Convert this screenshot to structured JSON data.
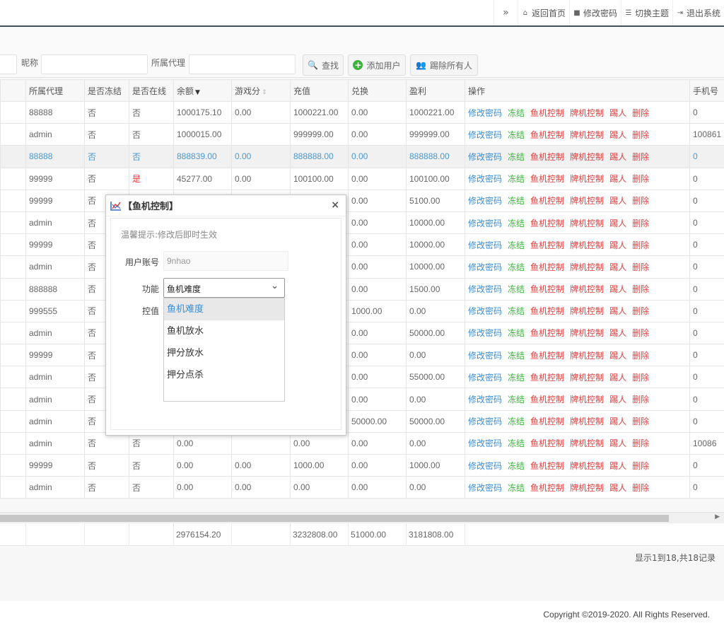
{
  "topnav": {
    "expand": "»",
    "home": "返回首页",
    "password": "修改密码",
    "theme": "切换主题",
    "logout": "退出系统"
  },
  "toolbar": {
    "nickname_label": "昵称",
    "agent_label": "所属代理",
    "search_btn": "查找",
    "add_btn": "添加用户",
    "kick_all_btn": "踢除所有人"
  },
  "table": {
    "headers": [
      "所属代理",
      "是否冻结",
      "是否在线",
      "余额",
      "游戏分",
      "充值",
      "兑换",
      "盈利",
      "操作",
      "手机号"
    ],
    "ops": [
      "修改密码",
      "冻结",
      "鱼机控制",
      "牌机控制",
      "踢人",
      "删除"
    ],
    "rows": [
      [
        "88888",
        "否",
        "否",
        "1000175.10",
        "0.00",
        "1000221.00",
        "0.00",
        "1000221.00",
        "0"
      ],
      [
        "admin",
        "否",
        "否",
        "1000015.00",
        "",
        "999999.00",
        "0.00",
        "999999.00",
        "100861"
      ],
      [
        "88888",
        "否",
        "否",
        "888839.00",
        "0.00",
        "888888.00",
        "0.00",
        "888888.00",
        "0"
      ],
      [
        "99999",
        "否",
        "是",
        "45277.00",
        "0.00",
        "100100.00",
        "0.00",
        "100100.00",
        "0"
      ],
      [
        "99999",
        "否",
        "",
        "",
        "",
        "",
        "0.00",
        "5100.00",
        "0"
      ],
      [
        "admin",
        "否",
        "",
        "",
        "",
        "",
        "0.00",
        "10000.00",
        "0"
      ],
      [
        "99999",
        "否",
        "",
        "",
        "",
        "",
        "0.00",
        "10000.00",
        "0"
      ],
      [
        "admin",
        "否",
        "",
        "",
        "",
        "",
        "0.00",
        "10000.00",
        "0"
      ],
      [
        "888888",
        "否",
        "",
        "",
        "",
        "",
        "0.00",
        "1500.00",
        "0"
      ],
      [
        "999555",
        "否",
        "",
        "",
        "",
        "",
        "1000.00",
        "0.00",
        "0"
      ],
      [
        "admin",
        "否",
        "",
        "",
        "",
        "",
        "0.00",
        "50000.00",
        "0"
      ],
      [
        "99999",
        "否",
        "",
        "",
        "",
        "",
        "0.00",
        "0.00",
        "0"
      ],
      [
        "admin",
        "否",
        "",
        "",
        "",
        "",
        "0.00",
        "55000.00",
        "0"
      ],
      [
        "admin",
        "否",
        "",
        "",
        "",
        "",
        "0.00",
        "0.00",
        "0"
      ],
      [
        "admin",
        "否",
        "",
        "",
        "",
        "",
        "50000.00",
        "50000.00",
        "0"
      ],
      [
        "admin",
        "否",
        "否",
        "0.00",
        "",
        "0.00",
        "0.00",
        "0.00",
        "10086"
      ],
      [
        "99999",
        "否",
        "否",
        "0.00",
        "0.00",
        "1000.00",
        "0.00",
        "1000.00",
        "0"
      ],
      [
        "admin",
        "否",
        "否",
        "0.00",
        "0.00",
        "0.00",
        "0.00",
        "0.00",
        "0"
      ]
    ]
  },
  "totals": {
    "balance": "2976154.20",
    "recharge": "3232808.00",
    "exchange": "51000.00",
    "profit": "3181808.00"
  },
  "pager": "显示1到18,共18记录",
  "copyright": "Copyright ©2019-2020. All Rights Reserved.",
  "dialog": {
    "title": "【鱼机控制】",
    "tip": "温馨提示:修改后即时生效",
    "account_label": "用户账号",
    "account_placeholder": "9nhao",
    "func_label": "功能",
    "func_value": "鱼机难度",
    "control_label": "控值",
    "options": [
      "鱼机难度",
      "鱼机放水",
      "押分放水",
      "押分点杀"
    ]
  }
}
